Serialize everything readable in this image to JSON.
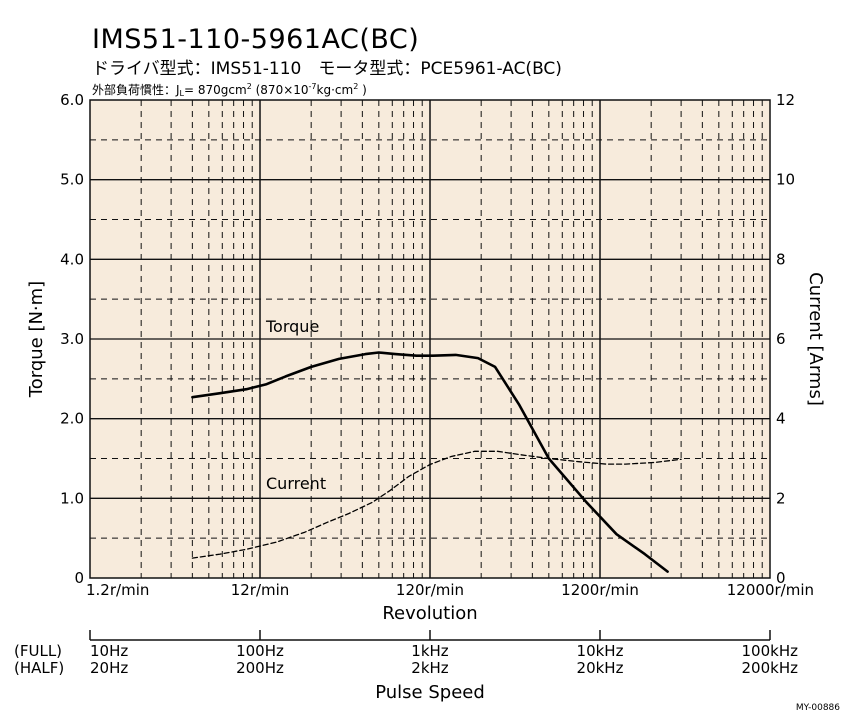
{
  "header": {
    "title": "IMS51-110-5961AC(BC)",
    "subtitle": "ドライバ型式：IMS51-110　モータ型式：PCE5961-AC(BC)",
    "inertia_prefix": "外部負荷慣性：J",
    "inertia_sub": "L",
    "inertia_mid": "= 870gcm",
    "inertia_sup": "2",
    "inertia_paren": " (870×10",
    "inertia_exp": "-7",
    "inertia_unit": "kg·cm",
    "inertia_sup2": "2",
    "inertia_close": " )"
  },
  "chart_data": {
    "type": "line",
    "xscale": "log",
    "xlim": [
      1.2,
      12000
    ],
    "xlabel": "Revolution",
    "x_ticks": [
      {
        "value": 1.2,
        "label": "1.2r/min"
      },
      {
        "value": 12,
        "label": "12r/min"
      },
      {
        "value": 120,
        "label": "120r/min"
      },
      {
        "value": 1200,
        "label": "1200r/min"
      },
      {
        "value": 12000,
        "label": "12000r/min"
      }
    ],
    "ylabel_left": "Torque [N·m]",
    "ylim_left": [
      0,
      6.0
    ],
    "y_ticks_left": [
      "0",
      "1.0",
      "2.0",
      "3.0",
      "4.0",
      "5.0",
      "6.0"
    ],
    "ylabel_right": "Current [Arms]",
    "ylim_right": [
      0,
      12
    ],
    "y_ticks_right": [
      "0",
      "2",
      "4",
      "6",
      "8",
      "10",
      "12"
    ],
    "grid": true,
    "background": "#f7ebdc",
    "series": [
      {
        "name": "Torque",
        "axis": "left",
        "style": "solid",
        "x": [
          4.8,
          7,
          10,
          13,
          17,
          24,
          35,
          50,
          60,
          75,
          100,
          125,
          170,
          230,
          290,
          400,
          600,
          1000,
          1500,
          2200,
          3000
        ],
        "y": [
          2.27,
          2.32,
          2.37,
          2.43,
          2.53,
          2.65,
          2.75,
          2.81,
          2.83,
          2.81,
          2.79,
          2.79,
          2.8,
          2.76,
          2.65,
          2.18,
          1.5,
          0.95,
          0.55,
          0.3,
          0.08
        ]
      },
      {
        "name": "Current",
        "axis": "right",
        "style": "dashed",
        "x": [
          4.8,
          7,
          10,
          15,
          22,
          30,
          40,
          55,
          70,
          90,
          120,
          160,
          220,
          300,
          400,
          600,
          900,
          1300,
          1700,
          2500,
          3600
        ],
        "y": [
          0.5,
          0.6,
          0.72,
          0.9,
          1.15,
          1.4,
          1.62,
          1.9,
          2.2,
          2.55,
          2.85,
          3.05,
          3.18,
          3.18,
          3.1,
          3.0,
          2.92,
          2.86,
          2.86,
          2.9,
          2.98
        ]
      }
    ],
    "series_labels": {
      "torque": "Torque",
      "current": "Current"
    }
  },
  "pulse_speed": {
    "title": "Pulse Speed",
    "row_full_label": "(FULL)",
    "row_half_label": "(HALF)",
    "ticks": [
      {
        "full": "10Hz",
        "half": "20Hz"
      },
      {
        "full": "100Hz",
        "half": "200Hz"
      },
      {
        "full": "1kHz",
        "half": "2kHz"
      },
      {
        "full": "10kHz",
        "half": "20kHz"
      },
      {
        "full": "100kHz",
        "half": "200kHz"
      }
    ]
  },
  "figure_code": "MY-00886",
  "colors": {
    "grid": "#111111",
    "line": "#000000",
    "background": "#f7ebdc"
  }
}
